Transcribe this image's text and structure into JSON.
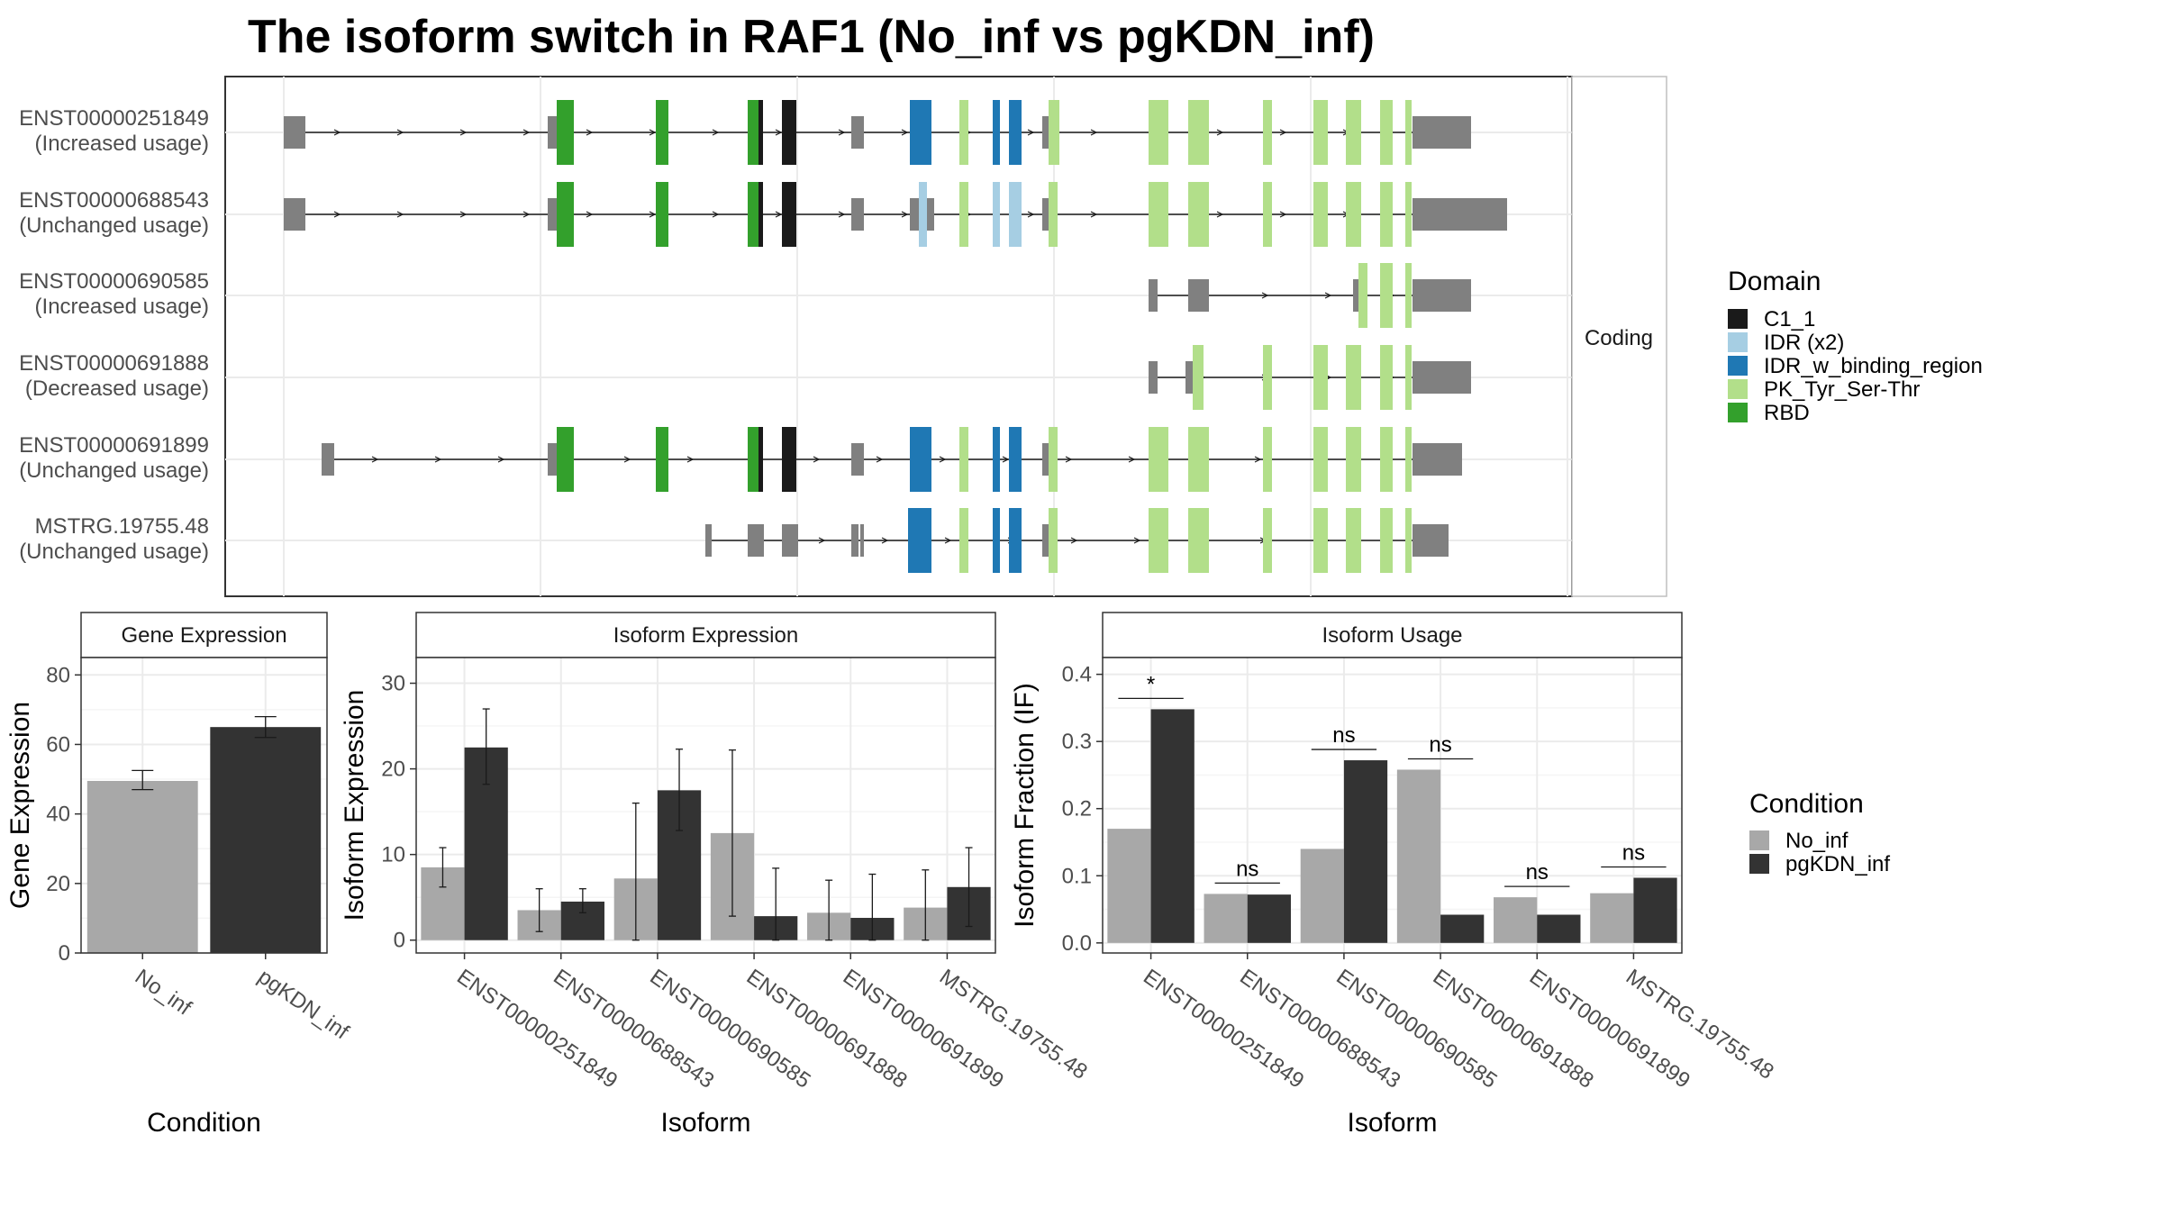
{
  "title": "The isoform switch in RAF1 (No_inf vs pgKDN_inf)",
  "colors": {
    "No_inf": "#a8a8a8",
    "pgKDN_inf": "#333333",
    "utr": "#808080",
    "C1_1": "#1a1a1a",
    "IDR (x2)": "#a6cee3",
    "IDR_w_binding_region": "#1f78b4",
    "PK_Tyr_Ser-Thr": "#b2df8a",
    "RBD": "#33a02c"
  },
  "domain_legend": {
    "title": "Domain",
    "items": [
      "C1_1",
      "IDR (x2)",
      "IDR_w_binding_region",
      "PK_Tyr_Ser-Thr",
      "RBD"
    ]
  },
  "condition_legend": {
    "title": "Condition",
    "items": [
      "No_inf",
      "pgKDN_inf"
    ]
  },
  "structure_panel": {
    "strip_label": "Coding",
    "transcripts": [
      {
        "id": "ENST00000251849",
        "status": "(Increased usage)"
      },
      {
        "id": "ENST00000688543",
        "status": "(Unchanged usage)"
      },
      {
        "id": "ENST00000690585",
        "status": "(Increased usage)"
      },
      {
        "id": "ENST00000691888",
        "status": "(Decreased usage)"
      },
      {
        "id": "ENST00000691899",
        "status": "(Unchanged usage)"
      },
      {
        "id": "MSTRG.19755.48",
        "status": "(Unchanged usage)"
      }
    ]
  },
  "chart_data": [
    {
      "type": "bar",
      "title": "Gene Expression",
      "xlabel": "Condition",
      "ylabel": "Gene Expression",
      "categories": [
        "No_inf",
        "pgKDN_inf"
      ],
      "values": [
        49.5,
        65.0
      ],
      "error_low": [
        47.0,
        62.0
      ],
      "error_high": [
        52.5,
        68.0
      ],
      "ylim": [
        0,
        85
      ],
      "yticks": [
        0,
        20,
        40,
        60,
        80
      ]
    },
    {
      "type": "bar",
      "title": "Isoform Expression",
      "xlabel": "Isoform",
      "ylabel": "Isoform Expression",
      "categories": [
        "ENST00000251849",
        "ENST00000688543",
        "ENST00000690585",
        "ENST00000691888",
        "ENST00000691899",
        "MSTRG.19755.48"
      ],
      "series": [
        {
          "name": "No_inf",
          "values": [
            8.5,
            3.5,
            7.2,
            12.5,
            3.2,
            3.8
          ],
          "error_low": [
            6.2,
            1.0,
            0.0,
            2.8,
            0.0,
            0.0
          ],
          "error_high": [
            10.8,
            6.0,
            16.0,
            22.2,
            7.0,
            8.2
          ]
        },
        {
          "name": "pgKDN_inf",
          "values": [
            22.5,
            4.5,
            17.5,
            2.8,
            2.6,
            6.2
          ],
          "error_low": [
            18.2,
            3.2,
            12.8,
            0.0,
            0.0,
            1.6
          ],
          "error_high": [
            27.0,
            6.0,
            22.3,
            8.4,
            7.7,
            10.8
          ]
        }
      ],
      "ylim": [
        -1.5,
        33
      ],
      "yticks": [
        0,
        10,
        20,
        30
      ]
    },
    {
      "type": "bar",
      "title": "Isoform Usage",
      "xlabel": "Isoform",
      "ylabel": "Isoform Fraction (IF)",
      "categories": [
        "ENST00000251849",
        "ENST00000688543",
        "ENST00000690585",
        "ENST00000691888",
        "ENST00000691899",
        "MSTRG.19755.48"
      ],
      "series": [
        {
          "name": "No_inf",
          "values": [
            0.17,
            0.073,
            0.14,
            0.258,
            0.068,
            0.074
          ]
        },
        {
          "name": "pgKDN_inf",
          "values": [
            0.348,
            0.072,
            0.272,
            0.042,
            0.042,
            0.097
          ]
        }
      ],
      "significance": [
        "*",
        "ns",
        "ns",
        "ns",
        "ns",
        "ns"
      ],
      "ylim": [
        -0.015,
        0.425
      ],
      "yticks": [
        0.0,
        0.1,
        0.2,
        0.3,
        0.4
      ]
    }
  ]
}
